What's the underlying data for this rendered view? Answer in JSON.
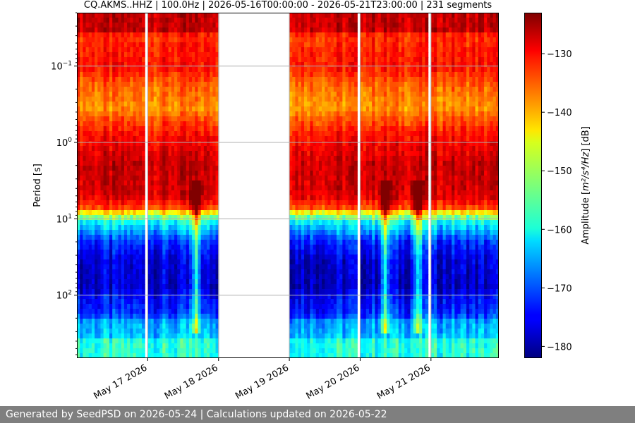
{
  "chart_data": {
    "type": "heatmap",
    "title": "CQ.AKMS..HHZ | 100.0Hz | 2026-05-16T00:00:00 - 2026-05-21T23:00:00 | 231 segments",
    "xlabel": "",
    "ylabel": "Period [s]",
    "x_tick_labels": [
      "May 17 2026",
      "May 18 2026",
      "May 19 2026",
      "May 20 2026",
      "May 21 2026"
    ],
    "x_range": [
      "2026-05-16T00:00:00",
      "2026-05-21T23:00:00"
    ],
    "y_scale": "log",
    "y_inverted": true,
    "y_range": [
      0.02,
      667
    ],
    "y_ticks": [
      {
        "value": 0.1,
        "base": "10",
        "exp": "−1"
      },
      {
        "value": 1,
        "base": "10",
        "exp": "0"
      },
      {
        "value": 10,
        "base": "10",
        "exp": "1"
      },
      {
        "value": 100,
        "base": "10",
        "exp": "2"
      }
    ],
    "grid": true,
    "data_gaps": [
      {
        "start": "2026-05-16T23:00:00",
        "end": "2026-05-17T00:00:00"
      },
      {
        "start": "2026-05-18T00:00:00",
        "end": "2026-05-19T00:00:00"
      },
      {
        "start": "2026-05-19T23:00:00",
        "end": "2026-05-20T00:00:00"
      },
      {
        "start": "2026-05-20T23:00:00",
        "end": "2026-05-21T00:00:00"
      }
    ],
    "features": [
      {
        "date": "2026-05-17T16:00:00",
        "type": "vertical streak"
      },
      {
        "date": "2026-05-20T08:00:00",
        "type": "vertical streak"
      },
      {
        "date": "2026-05-20T19:00:00",
        "type": "vertical streak"
      }
    ],
    "colorbar": {
      "label": "Amplitude [m²/s⁴/Hz] [dB]",
      "label_main": "Amplitude [",
      "label_math": "m²/s⁴/Hz",
      "label_end": "] [dB]",
      "colormap": "jet",
      "range": [
        -182,
        -123
      ],
      "ticks": [
        -130,
        -140,
        -150,
        -160,
        -170,
        -180
      ],
      "tick_labels": [
        "−130",
        "−140",
        "−150",
        "−160",
        "−170",
        "−180"
      ]
    },
    "series": []
  },
  "footer": {
    "text": "Generated by SeedPSD on 2026-05-24 | Calculations updated on 2026-05-22"
  }
}
